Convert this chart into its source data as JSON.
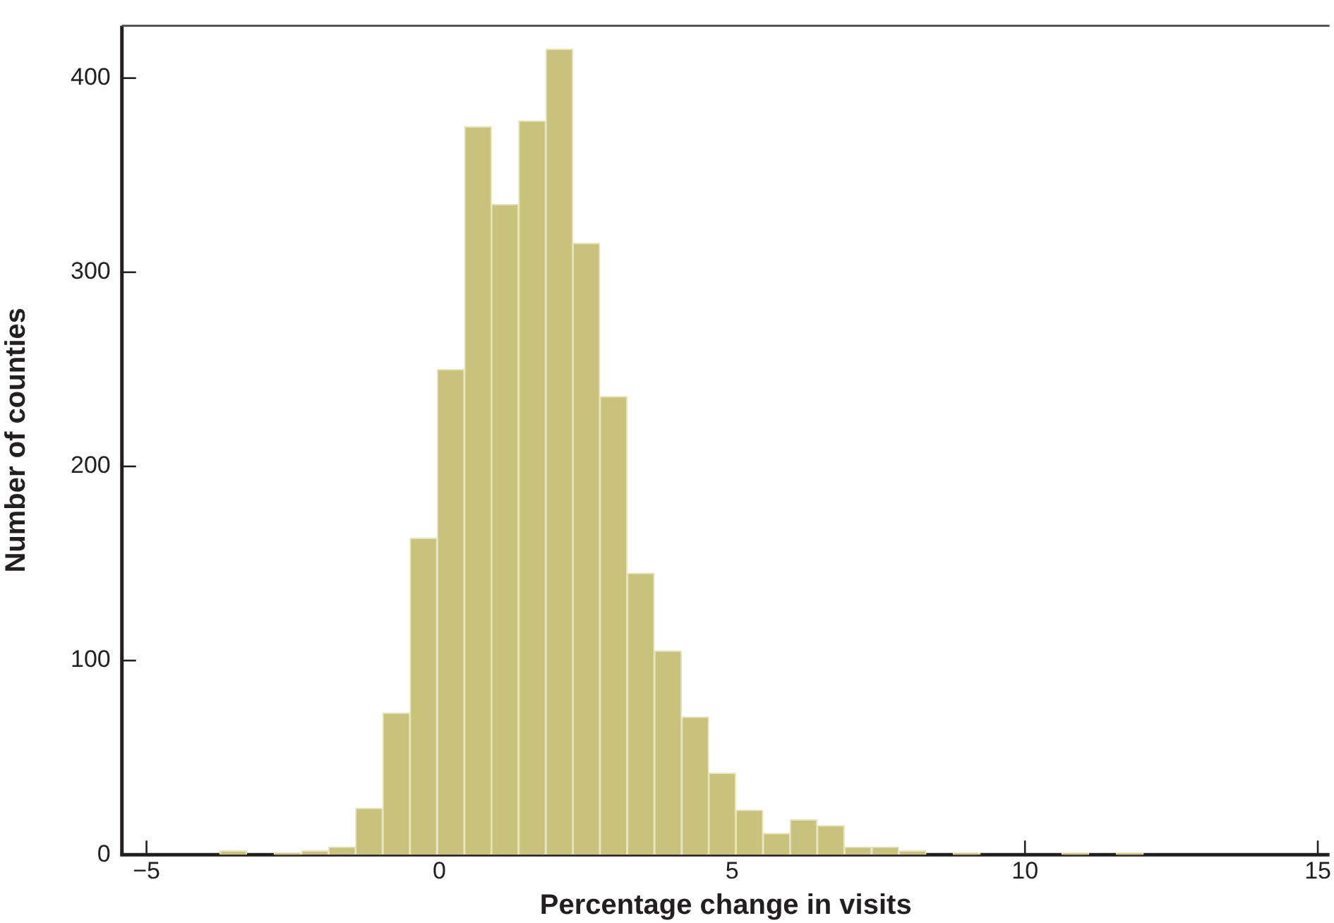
{
  "chart_data": {
    "type": "histogram",
    "xlabel": "Percentage change in visits",
    "ylabel": "Number of counties",
    "bins": [
      -3.75,
      -3.29,
      -2.82,
      -2.36,
      -1.89,
      -1.43,
      -0.97,
      -0.5,
      -0.04,
      0.43,
      0.89,
      1.35,
      1.82,
      2.28,
      2.74,
      3.21,
      3.67,
      4.14,
      4.6,
      5.06,
      5.53,
      5.99,
      6.45,
      6.92,
      7.38,
      7.85,
      8.31,
      8.77,
      9.24,
      9.7,
      10.16,
      10.63,
      11.09,
      11.56,
      12.02
    ],
    "values": [
      2,
      0,
      1,
      2,
      4,
      24,
      73,
      163,
      250,
      375,
      335,
      378,
      415,
      315,
      236,
      145,
      105,
      71,
      42,
      23,
      11,
      18,
      15,
      4,
      4,
      2,
      0,
      1,
      0,
      0,
      0,
      1,
      0,
      1
    ],
    "color": "#c9c27c",
    "xlim": [
      -5.42,
      15.2
    ],
    "xticks": [
      {
        "value": -5,
        "label": "−5"
      },
      0,
      5,
      10,
      15
    ],
    "ylim": [
      0,
      427
    ],
    "yticks": [
      0,
      100,
      200,
      300,
      400
    ],
    "grid": false,
    "legend": false
  }
}
